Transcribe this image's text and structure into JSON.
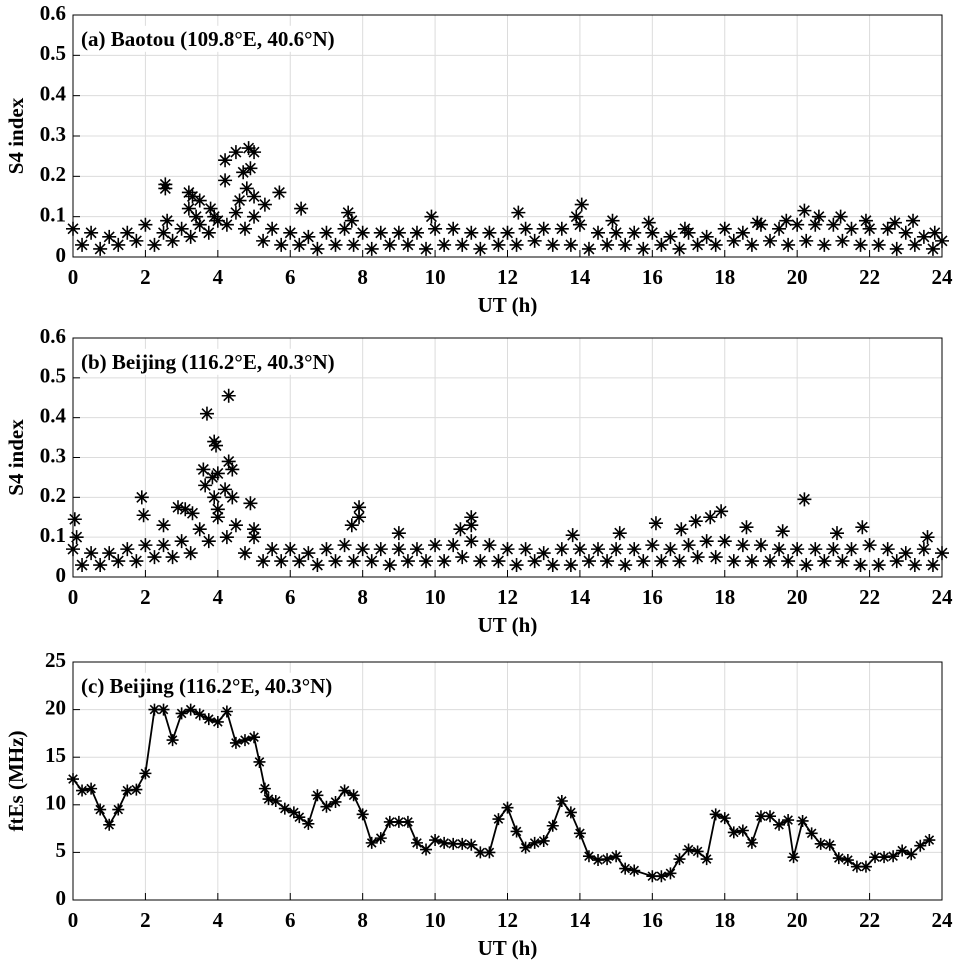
{
  "chart_data": [
    {
      "type": "scatter",
      "title": "(a) Baotou (109.8°E, 40.6°N)",
      "xlabel": "UT (h)",
      "ylabel": "S4 index",
      "color": "#000000",
      "marker": "*",
      "grid": true,
      "xlim": [
        0,
        24
      ],
      "ylim": [
        0,
        0.6
      ],
      "xticks": [
        0,
        2,
        4,
        6,
        8,
        10,
        12,
        14,
        16,
        18,
        20,
        22,
        24
      ],
      "yticks": [
        0,
        0.1,
        0.2,
        0.3,
        0.4,
        0.5,
        0.6
      ],
      "x": [
        0,
        0.5,
        1,
        1.5,
        2,
        2.5,
        3,
        3.5,
        4,
        4.5,
        5,
        5.5,
        6,
        6.5,
        7,
        7.5,
        8,
        8.5,
        9,
        9.5,
        10,
        10.5,
        11,
        11.5,
        12,
        12.5,
        13,
        13.5,
        14,
        14.5,
        15,
        15.5,
        16,
        16.5,
        17,
        17.5,
        18,
        18.5,
        19,
        19.5,
        20,
        20.5,
        21,
        21.5,
        22,
        22.5,
        23,
        23.5,
        24,
        0.25,
        0.75,
        1.25,
        1.75,
        2.25,
        2.75,
        3.25,
        3.75,
        4.25,
        4.75,
        5.25,
        5.75,
        6.25,
        6.75,
        7.25,
        7.75,
        8.25,
        8.75,
        9.25,
        9.75,
        10.25,
        10.75,
        11.25,
        11.75,
        12.25,
        12.75,
        13.25,
        13.75,
        14.25,
        14.75,
        15.25,
        15.75,
        16.25,
        16.75,
        17.25,
        17.75,
        18.25,
        18.75,
        19.25,
        19.75,
        20.25,
        20.75,
        21.25,
        21.75,
        22.25,
        22.75,
        23.25,
        23.75,
        2.55,
        2.55,
        2.6,
        3.2,
        3.3,
        3.5,
        3.2,
        3.4,
        3.8,
        3.9,
        4.2,
        4.2,
        4.5,
        4.85,
        5.0,
        4.7,
        4.9,
        4.8,
        4.6,
        5.0,
        5.3,
        5.7,
        6.3,
        7.6,
        7.7,
        9.9,
        12.3,
        13.9,
        14.05,
        14.9,
        15.9,
        16.9,
        18.9,
        19.7,
        20.2,
        20.6,
        21.2,
        21.9,
        22.7,
        23.2,
        23.8
      ],
      "values": [
        0.07,
        0.06,
        0.05,
        0.06,
        0.08,
        0.06,
        0.07,
        0.08,
        0.09,
        0.11,
        0.1,
        0.07,
        0.06,
        0.05,
        0.06,
        0.07,
        0.06,
        0.06,
        0.06,
        0.06,
        0.07,
        0.07,
        0.06,
        0.06,
        0.06,
        0.07,
        0.07,
        0.07,
        0.08,
        0.06,
        0.06,
        0.06,
        0.06,
        0.05,
        0.06,
        0.05,
        0.07,
        0.06,
        0.08,
        0.07,
        0.08,
        0.08,
        0.08,
        0.07,
        0.07,
        0.07,
        0.06,
        0.05,
        0.04,
        0.03,
        0.02,
        0.03,
        0.04,
        0.03,
        0.04,
        0.05,
        0.06,
        0.08,
        0.07,
        0.04,
        0.03,
        0.03,
        0.02,
        0.03,
        0.03,
        0.02,
        0.03,
        0.03,
        0.02,
        0.03,
        0.03,
        0.02,
        0.03,
        0.03,
        0.04,
        0.03,
        0.03,
        0.02,
        0.03,
        0.03,
        0.02,
        0.03,
        0.02,
        0.03,
        0.03,
        0.04,
        0.03,
        0.04,
        0.03,
        0.04,
        0.03,
        0.04,
        0.03,
        0.03,
        0.02,
        0.03,
        0.02,
        0.18,
        0.17,
        0.09,
        0.16,
        0.15,
        0.14,
        0.12,
        0.1,
        0.12,
        0.1,
        0.24,
        0.19,
        0.26,
        0.27,
        0.26,
        0.21,
        0.22,
        0.17,
        0.14,
        0.15,
        0.13,
        0.16,
        0.12,
        0.11,
        0.09,
        0.1,
        0.11,
        0.1,
        0.13,
        0.09,
        0.085,
        0.07,
        0.085,
        0.09,
        0.115,
        0.1,
        0.1,
        0.09,
        0.085,
        0.09,
        0.06
      ]
    },
    {
      "type": "scatter",
      "title": "(b) Beijing (116.2°E, 40.3°N)",
      "xlabel": "UT (h)",
      "ylabel": "S4 index",
      "color": "#000000",
      "marker": "*",
      "grid": true,
      "xlim": [
        0,
        24
      ],
      "ylim": [
        0,
        0.6
      ],
      "xticks": [
        0,
        2,
        4,
        6,
        8,
        10,
        12,
        14,
        16,
        18,
        20,
        22,
        24
      ],
      "yticks": [
        0,
        0.1,
        0.2,
        0.3,
        0.4,
        0.5,
        0.6
      ],
      "x": [
        0,
        0.5,
        1,
        1.5,
        2,
        2.5,
        3,
        3.5,
        4,
        4.5,
        5,
        5.5,
        6,
        6.5,
        7,
        7.5,
        8,
        8.5,
        9,
        9.5,
        10,
        10.5,
        11,
        11.5,
        12,
        12.5,
        13,
        13.5,
        14,
        14.5,
        15,
        15.5,
        16,
        16.5,
        17,
        17.5,
        18,
        18.5,
        19,
        19.5,
        20,
        20.5,
        21,
        21.5,
        22,
        22.5,
        23,
        23.5,
        24,
        0.25,
        0.75,
        1.25,
        1.75,
        2.25,
        2.75,
        3.25,
        3.75,
        4.25,
        4.75,
        5.25,
        5.75,
        6.25,
        6.75,
        7.25,
        7.75,
        8.25,
        8.75,
        9.25,
        9.75,
        10.25,
        10.75,
        11.25,
        11.75,
        12.25,
        12.75,
        13.25,
        13.75,
        14.25,
        14.75,
        15.25,
        15.75,
        16.25,
        16.75,
        17.25,
        17.75,
        18.25,
        18.75,
        19.25,
        19.75,
        20.25,
        20.75,
        21.25,
        21.75,
        22.25,
        22.75,
        23.25,
        23.75,
        0.05,
        0.1,
        1.9,
        1.95,
        2.5,
        2.9,
        3.1,
        3.3,
        3.6,
        3.7,
        3.65,
        3.9,
        3.95,
        3.85,
        4.0,
        4.3,
        4.3,
        4.4,
        4.2,
        4.4,
        3.9,
        4.0,
        4.9,
        5.0,
        7.7,
        7.9,
        7.9,
        9.0,
        10.7,
        11.0,
        11.0,
        13.8,
        15.1,
        16.1,
        16.8,
        17.2,
        17.6,
        17.9,
        18.6,
        19.6,
        20.2,
        21.1,
        21.8,
        23.6
      ],
      "values": [
        0.07,
        0.06,
        0.06,
        0.07,
        0.08,
        0.08,
        0.09,
        0.12,
        0.15,
        0.13,
        0.1,
        0.07,
        0.07,
        0.06,
        0.07,
        0.08,
        0.07,
        0.07,
        0.07,
        0.07,
        0.08,
        0.08,
        0.09,
        0.08,
        0.07,
        0.07,
        0.06,
        0.07,
        0.07,
        0.07,
        0.07,
        0.07,
        0.08,
        0.07,
        0.08,
        0.09,
        0.09,
        0.08,
        0.08,
        0.07,
        0.07,
        0.07,
        0.07,
        0.07,
        0.08,
        0.07,
        0.06,
        0.07,
        0.06,
        0.03,
        0.03,
        0.04,
        0.04,
        0.05,
        0.05,
        0.06,
        0.09,
        0.1,
        0.06,
        0.04,
        0.04,
        0.04,
        0.03,
        0.04,
        0.04,
        0.04,
        0.03,
        0.04,
        0.04,
        0.04,
        0.05,
        0.04,
        0.04,
        0.03,
        0.04,
        0.03,
        0.03,
        0.04,
        0.04,
        0.03,
        0.04,
        0.04,
        0.04,
        0.05,
        0.05,
        0.04,
        0.04,
        0.04,
        0.04,
        0.03,
        0.04,
        0.04,
        0.03,
        0.03,
        0.04,
        0.03,
        0.03,
        0.145,
        0.1,
        0.2,
        0.155,
        0.13,
        0.175,
        0.17,
        0.16,
        0.27,
        0.41,
        0.23,
        0.34,
        0.33,
        0.25,
        0.26,
        0.455,
        0.29,
        0.27,
        0.22,
        0.2,
        0.2,
        0.17,
        0.185,
        0.12,
        0.13,
        0.175,
        0.15,
        0.11,
        0.12,
        0.15,
        0.13,
        0.105,
        0.11,
        0.135,
        0.12,
        0.14,
        0.15,
        0.165,
        0.125,
        0.115,
        0.195,
        0.11,
        0.125,
        0.1
      ]
    },
    {
      "type": "line",
      "title": "(c) Beijing (116.2°E, 40.3°N)",
      "xlabel": "UT (h)",
      "ylabel": "ftEs (MHz)",
      "color": "#000000",
      "marker": "*",
      "grid": true,
      "xlim": [
        0,
        24
      ],
      "ylim": [
        0,
        25
      ],
      "xticks": [
        0,
        2,
        4,
        6,
        8,
        10,
        12,
        14,
        16,
        18,
        20,
        22,
        24
      ],
      "yticks": [
        0,
        5,
        10,
        15,
        20,
        25
      ],
      "x": [
        0,
        0.25,
        0.5,
        0.75,
        1,
        1.25,
        1.5,
        1.75,
        2,
        2.25,
        2.5,
        2.75,
        3,
        3.25,
        3.5,
        3.75,
        4,
        4.25,
        4.5,
        4.75,
        5,
        5.15,
        5.3,
        5.4,
        5.6,
        5.85,
        6.1,
        6.25,
        6.5,
        6.75,
        7,
        7.25,
        7.5,
        7.75,
        8,
        8.25,
        8.5,
        8.75,
        9,
        9.25,
        9.5,
        9.75,
        10,
        10.25,
        10.5,
        10.75,
        11,
        11.25,
        11.5,
        11.75,
        12,
        12.25,
        12.5,
        12.75,
        13,
        13.25,
        13.5,
        13.75,
        14,
        14.25,
        14.5,
        14.75,
        15,
        15.25,
        15.5,
        16,
        16.25,
        16.5,
        16.75,
        17,
        17.25,
        17.5,
        17.75,
        18,
        18.25,
        18.5,
        18.75,
        19,
        19.25,
        19.5,
        19.75,
        19.9,
        20.15,
        20.4,
        20.65,
        20.9,
        21.15,
        21.4,
        21.65,
        21.9,
        22.15,
        22.4,
        22.65,
        22.9,
        23.15,
        23.4,
        23.65
      ],
      "values": [
        12.7,
        11.5,
        11.7,
        9.5,
        7.9,
        9.5,
        11.5,
        11.6,
        13.3,
        20,
        20,
        16.8,
        19.6,
        20,
        19.5,
        19,
        18.7,
        19.8,
        16.5,
        16.8,
        17.1,
        14.5,
        11.7,
        10.6,
        10.4,
        9.6,
        9.2,
        8.7,
        8,
        11,
        9.8,
        10.3,
        11.5,
        11,
        9,
        6,
        6.5,
        8.2,
        8.2,
        8.2,
        6,
        5.3,
        6.3,
        6,
        5.9,
        5.9,
        5.8,
        5,
        5,
        8.5,
        9.7,
        7.2,
        5.5,
        6,
        6.2,
        7.8,
        10.4,
        9.2,
        7,
        4.6,
        4.2,
        4.3,
        4.6,
        3.3,
        3.1,
        2.5,
        2.5,
        2.8,
        4.3,
        5.3,
        5.1,
        4.3,
        9,
        8.6,
        7.1,
        7.3,
        6,
        8.8,
        8.8,
        7.9,
        8.4,
        4.5,
        8.3,
        7,
        5.9,
        5.8,
        4.4,
        4.2,
        3.5,
        3.5,
        4.5,
        4.5,
        4.6,
        5.2,
        4.8,
        5.7,
        6.3
      ]
    }
  ]
}
